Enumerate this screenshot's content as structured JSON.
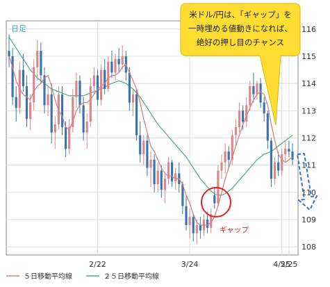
{
  "chart_data": {
    "type": "candlestick",
    "timeframe_label": "日足",
    "y_ticks": [
      108,
      109,
      110,
      111,
      112,
      113,
      114,
      115,
      116
    ],
    "ylim": [
      107.7,
      116.3
    ],
    "x_ticks": [
      "2/22",
      "3/24",
      "4/25",
      "5/25"
    ],
    "grid": true,
    "legend": [
      {
        "name": "５日移動平均線",
        "color": "#d98080"
      },
      {
        "name": "２５日移動平均線",
        "color": "#55b088"
      }
    ],
    "colors": {
      "up": "#d9868c",
      "down": "#3a73b0",
      "ma5": "#d98080",
      "ma25": "#55b088",
      "callout": "#ffdd33",
      "gap_circle": "#e02020",
      "forecast_arrow": "#3a6fc7"
    },
    "annotations": {
      "callout_lines": [
        "米ドル/円は、「ギャップ」を",
        "一時埋める値動きになれば、",
        "絶好の押し目のチャンス"
      ],
      "gap_label": "ギャップ"
    },
    "ohlc": [
      [
        115.2,
        115.8,
        114.6,
        115.0
      ],
      [
        115.0,
        115.3,
        113.2,
        113.5
      ],
      [
        113.5,
        113.9,
        112.6,
        113.1
      ],
      [
        113.1,
        114.8,
        112.9,
        114.5
      ],
      [
        114.5,
        115.1,
        113.7,
        113.9
      ],
      [
        113.9,
        114.3,
        112.4,
        112.7
      ],
      [
        112.7,
        113.6,
        112.3,
        113.3
      ],
      [
        113.3,
        114.9,
        113.0,
        114.6
      ],
      [
        114.6,
        115.6,
        114.1,
        115.2
      ],
      [
        115.2,
        115.5,
        114.0,
        114.3
      ],
      [
        114.3,
        114.6,
        112.9,
        113.2
      ],
      [
        113.2,
        113.9,
        112.8,
        113.6
      ],
      [
        113.6,
        114.0,
        111.8,
        112.2
      ],
      [
        112.2,
        112.8,
        111.6,
        112.5
      ],
      [
        112.5,
        113.9,
        112.3,
        113.6
      ],
      [
        113.6,
        113.9,
        112.1,
        112.4
      ],
      [
        112.4,
        112.6,
        111.3,
        111.6
      ],
      [
        111.6,
        112.7,
        111.4,
        112.4
      ],
      [
        112.4,
        113.8,
        112.2,
        113.5
      ],
      [
        113.5,
        114.4,
        113.1,
        114.1
      ],
      [
        114.1,
        114.3,
        112.9,
        113.2
      ],
      [
        113.2,
        113.5,
        111.9,
        112.2
      ],
      [
        112.2,
        112.9,
        111.6,
        112.6
      ],
      [
        112.6,
        114.2,
        112.4,
        113.9
      ],
      [
        113.9,
        114.6,
        113.6,
        114.3
      ],
      [
        114.3,
        114.5,
        113.2,
        113.4
      ],
      [
        113.4,
        114.7,
        113.2,
        114.5
      ],
      [
        114.5,
        114.9,
        113.6,
        113.8
      ],
      [
        113.8,
        115.0,
        113.7,
        114.8
      ],
      [
        114.8,
        115.2,
        114.2,
        114.4
      ],
      [
        114.4,
        115.1,
        114.1,
        114.9
      ],
      [
        114.9,
        115.3,
        114.4,
        114.7
      ],
      [
        114.7,
        115.4,
        114.5,
        115.0
      ],
      [
        115.0,
        115.2,
        114.1,
        114.4
      ],
      [
        114.4,
        114.6,
        113.0,
        113.3
      ],
      [
        113.3,
        113.8,
        112.8,
        113.6
      ],
      [
        113.6,
        113.8,
        111.9,
        112.1
      ],
      [
        112.1,
        112.6,
        111.1,
        111.4
      ],
      [
        111.4,
        112.1,
        111.0,
        111.9
      ],
      [
        111.9,
        112.1,
        110.6,
        110.9
      ],
      [
        110.9,
        111.5,
        110.2,
        111.2
      ],
      [
        111.2,
        111.4,
        110.0,
        110.3
      ],
      [
        110.3,
        111.1,
        110.0,
        110.8
      ],
      [
        110.8,
        111.0,
        109.8,
        110.1
      ],
      [
        110.1,
        110.7,
        109.6,
        110.5
      ],
      [
        110.5,
        111.3,
        110.3,
        111.1
      ],
      [
        111.1,
        111.2,
        110.2,
        110.4
      ],
      [
        110.4,
        110.9,
        110.1,
        110.7
      ],
      [
        110.7,
        111.1,
        110.0,
        110.3
      ],
      [
        110.3,
        110.4,
        109.2,
        109.5
      ],
      [
        109.5,
        109.9,
        108.6,
        108.8
      ],
      [
        108.8,
        109.4,
        108.3,
        109.1
      ],
      [
        109.1,
        109.2,
        108.2,
        108.5
      ],
      [
        108.5,
        109.0,
        108.1,
        108.8
      ],
      [
        108.8,
        109.1,
        108.3,
        108.6
      ],
      [
        108.6,
        109.2,
        108.4,
        109.0
      ],
      [
        109.0,
        109.3,
        108.5,
        108.7
      ],
      [
        108.7,
        109.4,
        108.5,
        109.2
      ],
      [
        109.9,
        110.2,
        109.4,
        109.6
      ],
      [
        109.6,
        111.0,
        109.5,
        110.8
      ],
      [
        110.8,
        111.4,
        110.5,
        111.1
      ],
      [
        111.1,
        111.8,
        110.7,
        111.5
      ],
      [
        111.5,
        111.7,
        110.9,
        111.2
      ],
      [
        111.2,
        112.3,
        111.0,
        112.1
      ],
      [
        112.1,
        112.7,
        111.7,
        112.4
      ],
      [
        112.4,
        113.3,
        112.2,
        113.0
      ],
      [
        113.0,
        113.2,
        112.3,
        112.6
      ],
      [
        112.6,
        113.5,
        112.4,
        113.2
      ],
      [
        113.2,
        114.1,
        113.0,
        113.9
      ],
      [
        113.9,
        114.4,
        113.3,
        113.6
      ],
      [
        113.6,
        114.1,
        113.4,
        114.0
      ],
      [
        114.0,
        114.2,
        113.1,
        113.3
      ],
      [
        113.3,
        113.5,
        112.6,
        112.9
      ],
      [
        112.9,
        113.0,
        111.6,
        111.9
      ],
      [
        111.9,
        112.0,
        110.2,
        110.5
      ],
      [
        110.5,
        111.3,
        110.3,
        111.1
      ],
      [
        111.1,
        111.5,
        110.6,
        110.8
      ],
      [
        110.8,
        111.6,
        110.6,
        111.4
      ],
      [
        111.4,
        111.9,
        111.1,
        111.6
      ],
      [
        111.6,
        111.9,
        111.3,
        111.5
      ],
      [
        111.5,
        111.8,
        111.0,
        111.2
      ]
    ],
    "ma25": [
      115.7,
      115.5,
      115.3,
      115.1,
      114.9,
      114.7,
      114.5,
      114.35,
      114.2,
      114.1,
      114.0,
      113.9,
      113.8,
      113.75,
      113.7,
      113.65,
      113.6,
      113.55,
      113.55,
      113.55,
      113.55,
      113.55,
      113.6,
      113.65,
      113.7,
      113.75,
      113.8,
      113.85,
      113.95,
      114.0,
      114.05,
      114.1,
      114.05,
      114.0,
      113.9,
      113.8,
      113.65,
      113.5,
      113.3,
      113.1,
      112.9,
      112.7,
      112.5,
      112.35,
      112.2,
      112.05,
      111.9,
      111.75,
      111.6,
      111.45,
      111.3,
      111.1,
      110.9,
      110.7,
      110.5,
      110.35,
      110.2,
      110.05,
      109.95,
      109.9,
      109.9,
      109.95,
      110.05,
      110.15,
      110.3,
      110.45,
      110.6,
      110.75,
      110.9,
      111.05,
      111.2,
      111.3,
      111.4,
      111.45,
      111.5,
      111.6,
      111.7,
      111.8,
      111.9,
      112.0,
      112.1
    ],
    "ma5": [
      115.0,
      114.6,
      114.1,
      113.8,
      113.6,
      113.5,
      113.4,
      113.7,
      113.9,
      114.0,
      114.2,
      114.3,
      113.9,
      113.4,
      113.0,
      112.8,
      112.4,
      112.3,
      112.6,
      113.0,
      113.2,
      113.3,
      113.3,
      113.4,
      113.6,
      113.8,
      113.9,
      114.0,
      114.2,
      114.3,
      114.3,
      114.4,
      114.6,
      114.7,
      114.4,
      114.1,
      113.8,
      113.3,
      112.7,
      112.2,
      111.7,
      111.5,
      111.2,
      110.9,
      110.7,
      110.6,
      110.6,
      110.5,
      110.5,
      110.3,
      109.9,
      109.6,
      109.2,
      108.9,
      108.8,
      108.8,
      108.8,
      108.9,
      109.1,
      109.5,
      110.0,
      110.5,
      110.9,
      111.3,
      111.7,
      112.1,
      112.5,
      112.8,
      113.1,
      113.4,
      113.6,
      113.7,
      113.6,
      113.2,
      112.5,
      111.9,
      111.4,
      111.2,
      111.1,
      111.2,
      111.3
    ]
  }
}
